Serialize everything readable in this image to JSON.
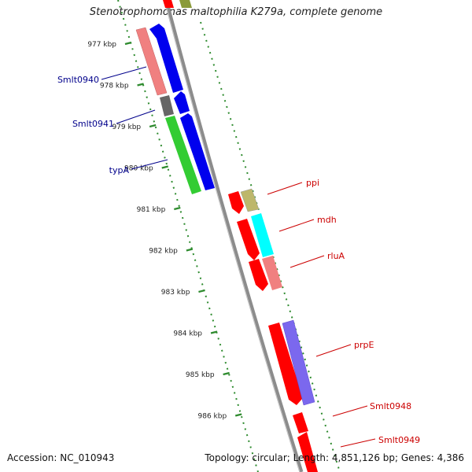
{
  "title": "Stenotrophomonas maltophilia K279a, complete genome",
  "footer": {
    "accession": "Accession: NC_010943",
    "summary": "Topology: circular; Length: 4,851,126 bp; Genes: 4,386"
  },
  "ticks": [
    "977 kbp",
    "978 kbp",
    "979 kbp",
    "980 kbp",
    "981 kbp",
    "982 kbp",
    "983 kbp",
    "984 kbp",
    "985 kbp",
    "986 kbp"
  ],
  "gene_labels": {
    "left": [
      "Smlt0940",
      "Smlt0941",
      "typA"
    ],
    "right": [
      "ppi",
      "mdh",
      "rluA",
      "prpE",
      "Smlt0948",
      "Smlt0949"
    ]
  },
  "colors": {
    "label_left": "#00008b",
    "label_right": "#cc0000",
    "ticks": "#2e8b2e",
    "backbone": "#808080",
    "blue": "#0000ee",
    "red": "#ff0000",
    "salmon": "#f08080",
    "green": "#33cc33",
    "dark_gray": "#666666",
    "khaki": "#bdb76b",
    "cyan": "#00ffff",
    "purple": "#7b68ee",
    "olive": "#8a9a3a"
  }
}
